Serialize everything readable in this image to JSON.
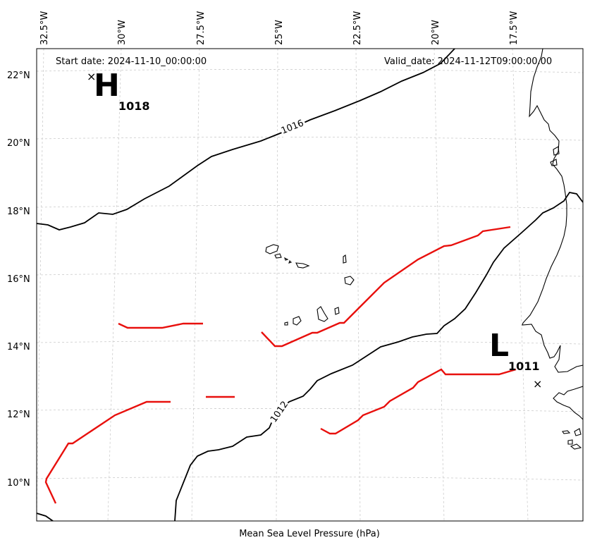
{
  "map": {
    "start_date": "Start date: 2024-11-10_00:00:00",
    "valid_date": "Valid_date: 2024-11-12T09:00:00.00",
    "caption": "Mean Sea Level Pressure (hPa)",
    "lon_labels": [
      "32.5°W",
      "30°W",
      "27.5°W",
      "25°W",
      "22.5°W",
      "20°W",
      "17.5°W"
    ],
    "lat_labels": [
      "22°N",
      "20°N",
      "18°N",
      "16°N",
      "14°N",
      "12°N",
      "10°N"
    ],
    "high": {
      "letter": "H",
      "value": "1018",
      "marker": "×"
    },
    "low": {
      "letter": "L",
      "value": "1011",
      "marker": "×"
    },
    "isobars": [
      {
        "label": "1016"
      },
      {
        "label": "1012"
      }
    ],
    "colors": {
      "isobar": "#000000",
      "front": "#e8100d",
      "grid": "#cccccc",
      "coast": "#000000"
    },
    "icons": {
      "high_marker": "cross-icon",
      "low_marker": "cross-icon"
    }
  }
}
